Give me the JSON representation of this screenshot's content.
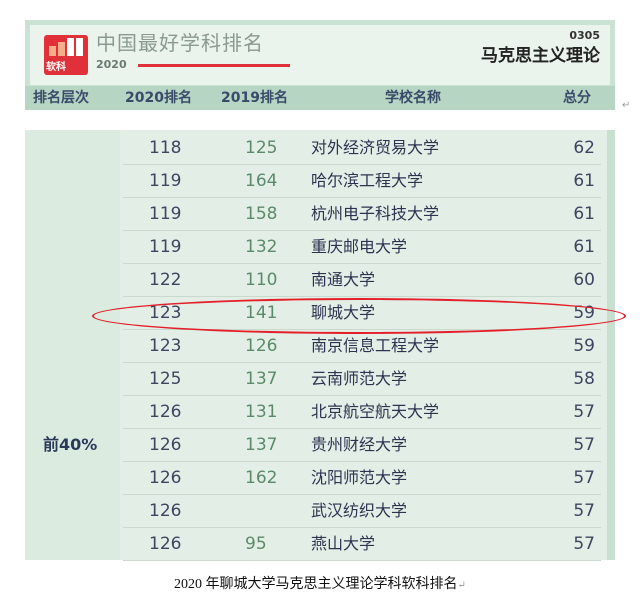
{
  "banner": {
    "logo_text": "软科",
    "title": "中国最好学科排名",
    "year": "2020",
    "code": "0305",
    "subject": "马克思主义理论"
  },
  "header": {
    "tier": "排名层次",
    "rank2020": "2020排名",
    "rank2019": "2019排名",
    "school": "学校名称",
    "score": "总分"
  },
  "tier_label": "前40%",
  "rows": [
    {
      "r2020": "118",
      "r2019": "125",
      "school": "对外经济贸易大学",
      "score": "62"
    },
    {
      "r2020": "119",
      "r2019": "164",
      "school": "哈尔滨工程大学",
      "score": "61"
    },
    {
      "r2020": "119",
      "r2019": "158",
      "school": "杭州电子科技大学",
      "score": "61"
    },
    {
      "r2020": "119",
      "r2019": "132",
      "school": "重庆邮电大学",
      "score": "61"
    },
    {
      "r2020": "122",
      "r2019": "110",
      "school": "南通大学",
      "score": "60"
    },
    {
      "r2020": "123",
      "r2019": "141",
      "school": "聊城大学",
      "score": "59",
      "highlighted": true
    },
    {
      "r2020": "123",
      "r2019": "126",
      "school": "南京信息工程大学",
      "score": "59"
    },
    {
      "r2020": "125",
      "r2019": "137",
      "school": "云南师范大学",
      "score": "58"
    },
    {
      "r2020": "126",
      "r2019": "131",
      "school": "北京航空航天大学",
      "score": "57"
    },
    {
      "r2020": "126",
      "r2019": "137",
      "school": "贵州财经大学",
      "score": "57"
    },
    {
      "r2020": "126",
      "r2019": "162",
      "school": "沈阳师范大学",
      "score": "57"
    },
    {
      "r2020": "126",
      "r2019": "",
      "school": "武汉纺织大学",
      "score": "57"
    },
    {
      "r2020": "126",
      "r2019": "95",
      "school": "燕山大学",
      "score": "57"
    }
  ],
  "caption": "2020 年聊城大学马克思主义理论学科软科排名",
  "colors": {
    "highlight": "#e3202a",
    "brand": "#e0303a",
    "header_bg": "#b6d6c3"
  }
}
